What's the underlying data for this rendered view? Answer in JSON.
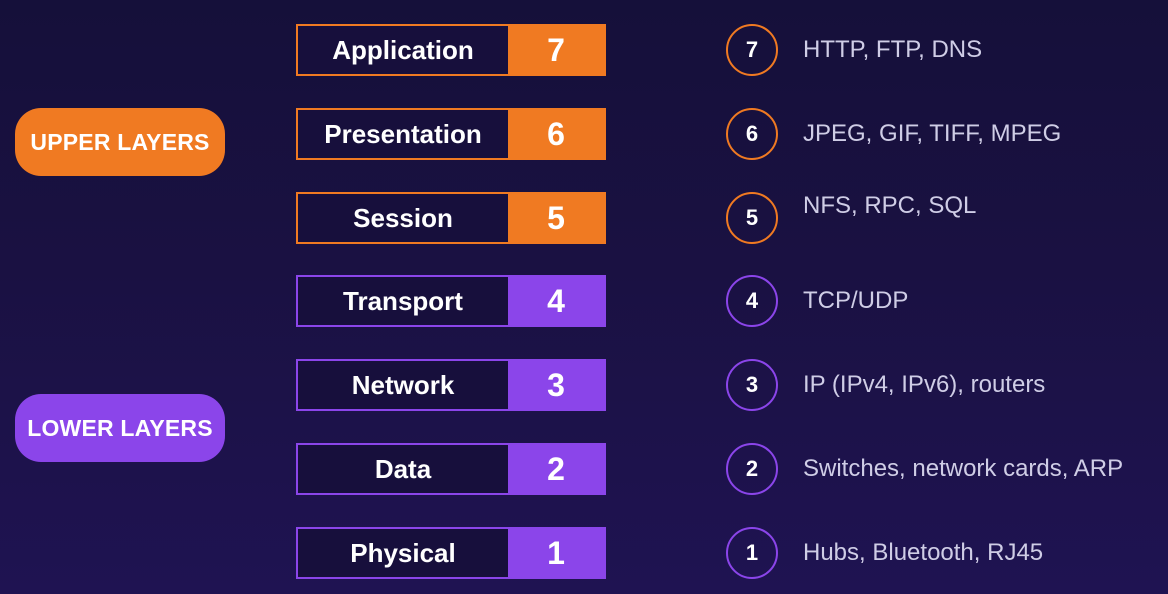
{
  "colors": {
    "upper": "#f07a22",
    "lower": "#8b45ea"
  },
  "groups": {
    "upper": {
      "label": "UPPER LAYERS"
    },
    "lower": {
      "label": "LOWER LAYERS"
    }
  },
  "layers": [
    {
      "number": "7",
      "name": "Application",
      "protocols": "HTTP, FTP, DNS",
      "group": "upper"
    },
    {
      "number": "6",
      "name": "Presentation",
      "protocols": "JPEG, GIF, TIFF, MPEG",
      "group": "upper"
    },
    {
      "number": "5",
      "name": "Session",
      "protocols": "NFS, RPC, SQL",
      "group": "upper"
    },
    {
      "number": "4",
      "name": "Transport",
      "protocols": "TCP/UDP",
      "group": "lower"
    },
    {
      "number": "3",
      "name": "Network",
      "protocols": "IP (IPv4, IPv6), routers",
      "group": "lower"
    },
    {
      "number": "2",
      "name": "Data",
      "protocols": "Switches, network cards, ARP",
      "group": "lower"
    },
    {
      "number": "1",
      "name": "Physical",
      "protocols": "Hubs, Bluetooth, RJ45",
      "group": "lower"
    }
  ]
}
